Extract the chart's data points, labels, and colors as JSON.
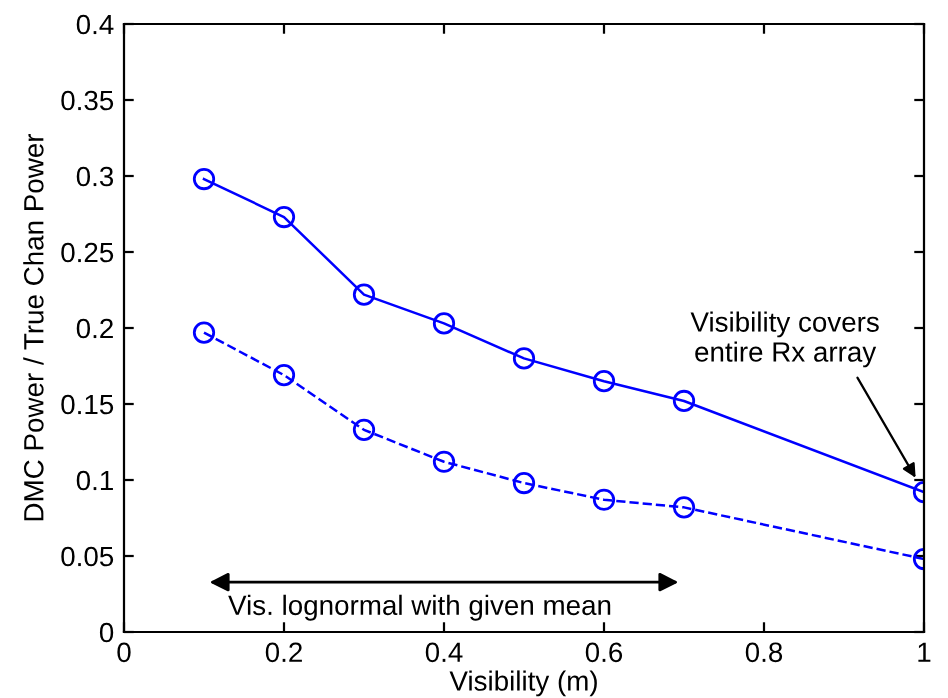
{
  "chart_data": {
    "type": "line",
    "xlabel": "Visibility (m)",
    "ylabel": "DMC Power / True Chan Power",
    "xlim": [
      0,
      1
    ],
    "xticks": [
      0,
      0.2,
      0.4,
      0.6,
      0.8,
      1
    ],
    "ylim": [
      0,
      0.4
    ],
    "yticks": [
      0,
      0.05,
      0.1,
      0.15,
      0.2,
      0.25,
      0.3,
      0.35,
      0.4
    ],
    "x": [
      0.1,
      0.2,
      0.3,
      0.4,
      0.5,
      0.6,
      0.7,
      1.0
    ],
    "marker": "circle",
    "grid": false,
    "legend": false,
    "series": [
      {
        "color": "#0000ff",
        "line_style": "solid",
        "values": [
          0.298,
          0.273,
          0.222,
          0.203,
          0.18,
          0.165,
          0.152,
          0.092
        ]
      },
      {
        "color": "#0000ff",
        "line_style": "dashed",
        "values": [
          0.197,
          0.169,
          0.133,
          0.112,
          0.098,
          0.087,
          0.082,
          0.048
        ]
      }
    ],
    "annotations": [
      "Vis. lognormal with given mean",
      "Visibility covers\nentire Rx array"
    ]
  }
}
